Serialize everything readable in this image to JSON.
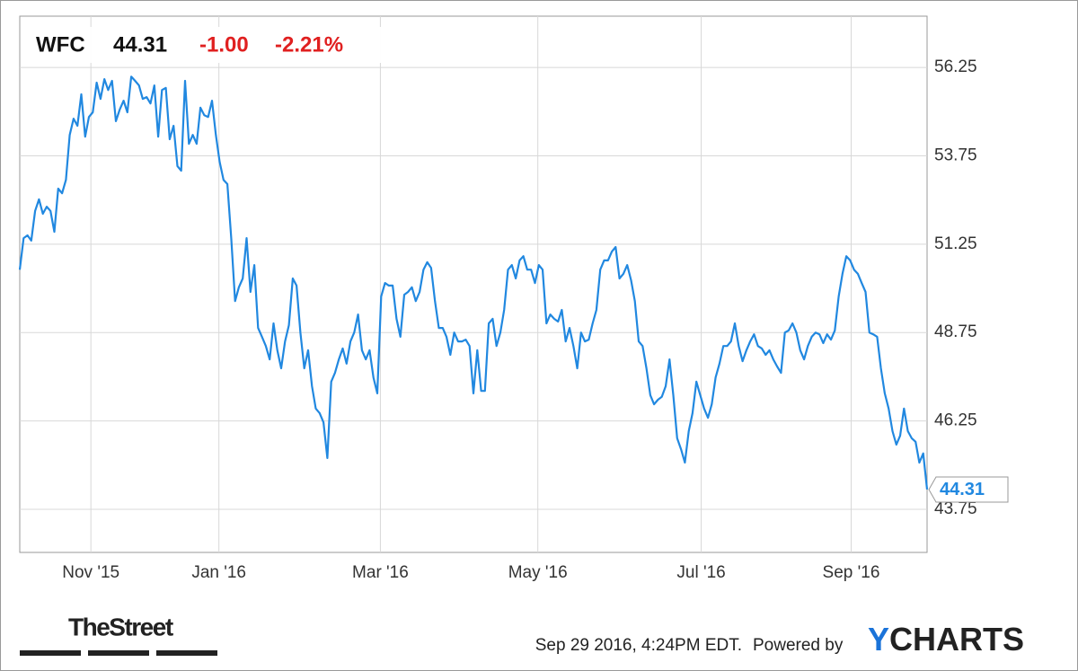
{
  "header": {
    "symbol": "WFC",
    "price": "44.31",
    "change": "-1.00",
    "change_pct": "-2.21%"
  },
  "chart_data": {
    "type": "line",
    "color": "#2188e0",
    "values": [
      50.53,
      51.42,
      51.5,
      51.35,
      52.19,
      52.52,
      52.11,
      52.31,
      52.19,
      51.6,
      52.82,
      52.69,
      53.07,
      54.34,
      54.8,
      54.6,
      55.49,
      54.29,
      54.85,
      54.98,
      55.82,
      55.36,
      55.92,
      55.61,
      55.87,
      54.73,
      55.06,
      55.31,
      54.98,
      55.99,
      55.87,
      55.74,
      55.36,
      55.41,
      55.23,
      55.74,
      54.29,
      55.61,
      55.67,
      54.22,
      54.6,
      53.46,
      53.33,
      55.87,
      54.09,
      54.34,
      54.09,
      55.11,
      54.9,
      54.85,
      55.31,
      54.34,
      53.58,
      53.07,
      52.95,
      51.42,
      49.64,
      50.03,
      50.28,
      51.42,
      49.9,
      50.66,
      48.88,
      48.63,
      48.37,
      47.99,
      49.01,
      48.25,
      47.74,
      48.5,
      48.96,
      50.28,
      50.08,
      48.75,
      47.74,
      48.25,
      47.23,
      46.6,
      46.47,
      46.21,
      45.2,
      47.36,
      47.61,
      47.99,
      48.3,
      47.87,
      48.5,
      48.75,
      49.26,
      48.25,
      47.99,
      48.25,
      47.48,
      47.03,
      49.77,
      50.15,
      50.08,
      50.08,
      49.14,
      48.63,
      49.82,
      49.9,
      50.03,
      49.64,
      49.9,
      50.53,
      50.74,
      50.58,
      49.64,
      48.88,
      48.88,
      48.63,
      48.12,
      48.75,
      48.5,
      48.5,
      48.55,
      48.37,
      47.03,
      48.25,
      47.1,
      47.1,
      49.01,
      49.14,
      48.37,
      48.75,
      49.39,
      50.53,
      50.66,
      50.28,
      50.79,
      50.91,
      50.53,
      50.53,
      50.15,
      50.66,
      50.53,
      49.01,
      49.26,
      49.14,
      49.06,
      49.39,
      48.5,
      48.88,
      48.37,
      47.74,
      48.75,
      48.5,
      48.55,
      49.01,
      49.39,
      50.53,
      50.79,
      50.79,
      51.04,
      51.17,
      50.28,
      50.41,
      50.66,
      50.23,
      49.64,
      48.5,
      48.37,
      47.74,
      46.98,
      46.72,
      46.85,
      46.93,
      47.23,
      47.99,
      46.98,
      45.76,
      45.45,
      45.07,
      45.96,
      46.47,
      47.36,
      46.98,
      46.6,
      46.34,
      46.72,
      47.48,
      47.87,
      48.37,
      48.37,
      48.5,
      49.01,
      48.37,
      47.94,
      48.25,
      48.5,
      48.7,
      48.37,
      48.3,
      48.12,
      48.25,
      47.99,
      47.79,
      47.61,
      48.75,
      48.81,
      49.01,
      48.75,
      48.25,
      47.99,
      48.37,
      48.63,
      48.75,
      48.7,
      48.45,
      48.7,
      48.55,
      48.81,
      49.77,
      50.41,
      50.91,
      50.79,
      50.53,
      50.41,
      50.15,
      49.9,
      48.75,
      48.7,
      48.63,
      47.74,
      47.03,
      46.6,
      45.96,
      45.58,
      45.83,
      46.6,
      45.96,
      45.76,
      45.66,
      45.07,
      45.33,
      44.31
    ],
    "last_label": "44.31",
    "xlim": [
      0,
      236
    ],
    "xticks": [
      {
        "value": 18.5,
        "label": "Nov '15"
      },
      {
        "value": 51.8,
        "label": "Jan '16"
      },
      {
        "value": 93.8,
        "label": "Mar '16"
      },
      {
        "value": 134.75,
        "label": "May '16"
      },
      {
        "value": 177.25,
        "label": "Jul '16"
      },
      {
        "value": 216.25,
        "label": "Sep '16"
      }
    ],
    "ylim": [
      42.53,
      57.7
    ],
    "yticks": [
      43.75,
      46.25,
      48.75,
      51.25,
      53.75,
      56.25
    ],
    "grid": true
  },
  "footer": {
    "source_logo": "TheStreet",
    "timestamp": "Sep 29 2016, 4:24PM EDT.",
    "powered_by": "Powered by",
    "brand": "YCHARTS"
  }
}
